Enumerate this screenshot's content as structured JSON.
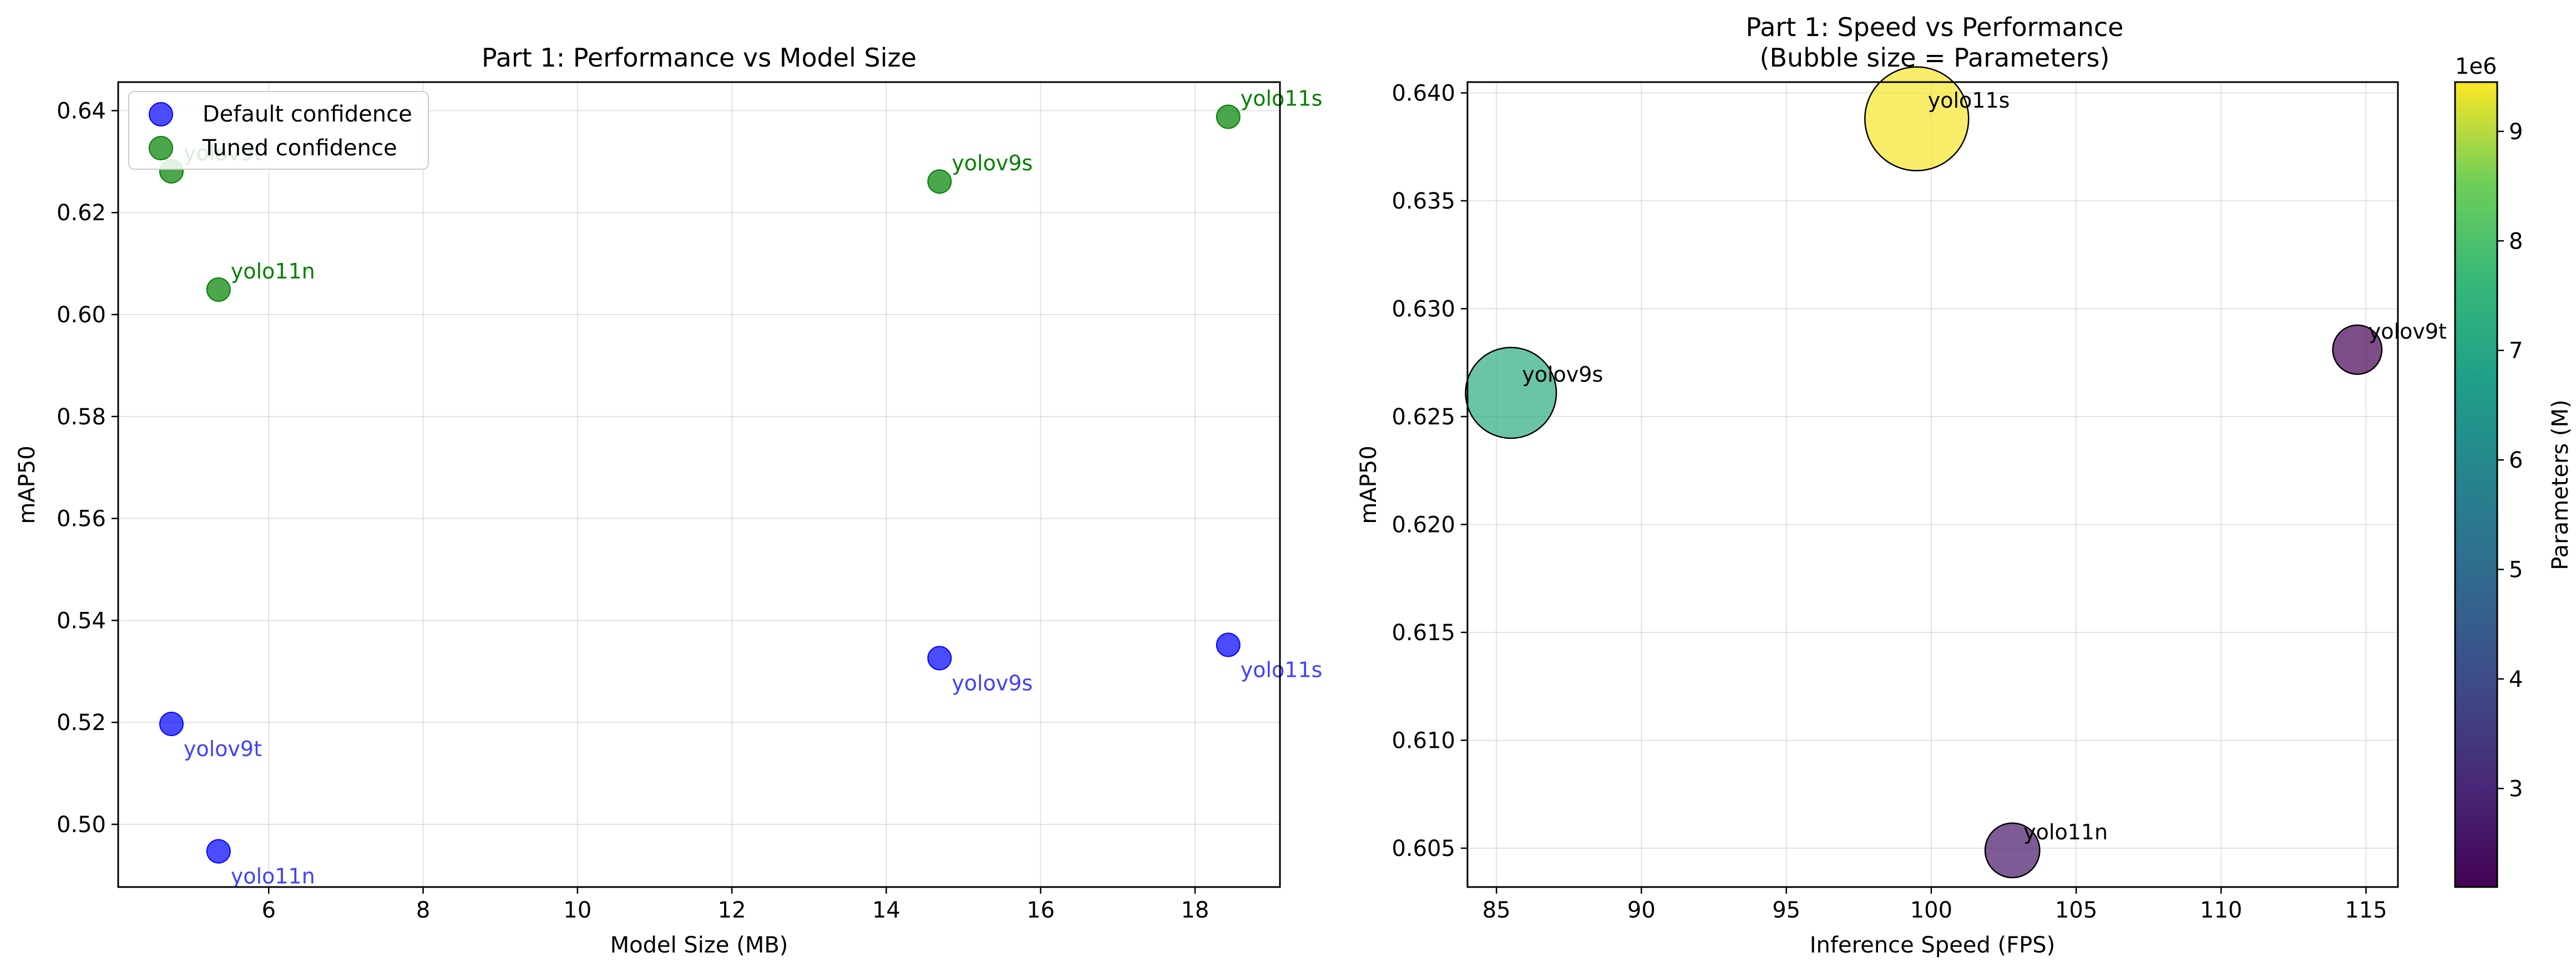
{
  "chart_data": [
    {
      "type": "scatter",
      "title": "Part 1: Performance vs Model Size",
      "xlabel": "Model Size (MB)",
      "ylabel": "mAP50",
      "xlim": [
        4.05,
        19.1
      ],
      "ylim": [
        0.4877,
        0.6456
      ],
      "xticks": [
        6,
        8,
        10,
        12,
        14,
        16,
        18
      ],
      "yticks": [
        0.5,
        0.52,
        0.54,
        0.56,
        0.58,
        0.6,
        0.62,
        0.64
      ],
      "grid": true,
      "legend_position": "top-left",
      "series": [
        {
          "name": "Default confidence",
          "color": "#0000ff",
          "label_color": "#4040ff",
          "points": [
            {
              "label": "yolov9t",
              "x": 4.74,
              "y": 0.5197
            },
            {
              "label": "yolo11n",
              "x": 5.35,
              "y": 0.4947
            },
            {
              "label": "yolov9s",
              "x": 14.69,
              "y": 0.5326
            },
            {
              "label": "yolo11s",
              "x": 18.43,
              "y": 0.5352
            }
          ]
        },
        {
          "name": "Tuned confidence",
          "color": "#008000",
          "label_color": "#008000",
          "points": [
            {
              "label": "yolov9t",
              "x": 4.74,
              "y": 0.6281
            },
            {
              "label": "yolo11n",
              "x": 5.35,
              "y": 0.6049
            },
            {
              "label": "yolov9s",
              "x": 14.69,
              "y": 0.6261
            },
            {
              "label": "yolo11s",
              "x": 18.43,
              "y": 0.6388
            }
          ]
        }
      ]
    },
    {
      "type": "scatter",
      "title": "Part 1: Speed vs Performance\n(Bubble size = Parameters)",
      "xlabel": "Inference Speed (FPS)",
      "ylabel": "mAP50",
      "xlim": [
        84.0,
        116.1
      ],
      "ylim": [
        0.6032,
        0.6405
      ],
      "xticks": [
        85,
        90,
        95,
        100,
        105,
        110,
        115
      ],
      "yticks": [
        0.605,
        0.61,
        0.615,
        0.62,
        0.625,
        0.63,
        0.635,
        0.64
      ],
      "grid": true,
      "colormap": "viridis",
      "colorbar": {
        "label": "Parameters (M)",
        "range": [
          2.1,
          9.45
        ],
        "ticks": [
          3,
          4,
          5,
          6,
          7,
          8,
          9
        ],
        "offset_text": "1e6"
      },
      "points": [
        {
          "label": "yolo11s",
          "x": 99.5,
          "y": 0.6388,
          "params": 9.4
        },
        {
          "label": "yolov9s",
          "x": 85.5,
          "y": 0.6261,
          "params": 7.2
        },
        {
          "label": "yolov9t",
          "x": 114.7,
          "y": 0.6281,
          "params": 2.1
        },
        {
          "label": "yolo11n",
          "x": 102.8,
          "y": 0.6049,
          "params": 2.6
        }
      ]
    }
  ]
}
